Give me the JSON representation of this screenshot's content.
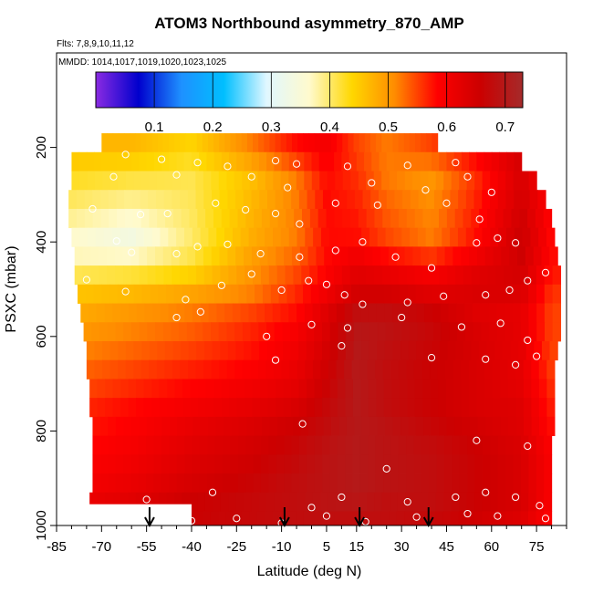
{
  "chart_data": {
    "type": "heatmap",
    "title": "ATOM3 Northbound asymmetry_870_AMP",
    "flights_note": "Flts: 7,8,9,10,11,12",
    "dates_note": "MMDD: 1014,1017,1019,1020,1023,1025",
    "xlabel": "Latitude (deg N)",
    "ylabel": "PSXC (mbar)",
    "xlim": [
      -85,
      85
    ],
    "ylim": [
      1000,
      0
    ],
    "x_ticks": [
      -85,
      -70,
      -55,
      -40,
      -25,
      -10,
      5,
      15,
      30,
      45,
      60,
      75
    ],
    "y_ticks": [
      200,
      400,
      600,
      800,
      1000
    ],
    "colorbar": {
      "range": [
        0,
        0.73
      ],
      "ticks": [
        0.1,
        0.2,
        0.3,
        0.4,
        0.5,
        0.6,
        0.7
      ],
      "colors": [
        "#8a2be2",
        "#0000cd",
        "#1e90ff",
        "#00bfff",
        "#e0f7ff",
        "#fffacd",
        "#ffd700",
        "#ff8c00",
        "#ff0000",
        "#cc0000",
        "#a52a2a"
      ]
    },
    "pressure_levels": [
      170,
      210,
      250,
      290,
      330,
      370,
      410,
      450,
      490,
      530,
      570,
      610,
      650,
      690,
      730,
      770,
      810,
      850,
      890,
      930,
      970,
      1000
    ],
    "row_extents": [
      [
        -70,
        42
      ],
      [
        -80,
        70
      ],
      [
        -80,
        75
      ],
      [
        -81,
        78
      ],
      [
        -81,
        80
      ],
      [
        -80,
        81
      ],
      [
        -79,
        82
      ],
      [
        -79,
        83
      ],
      [
        -78,
        83
      ],
      [
        -77,
        83
      ],
      [
        -76,
        83
      ],
      [
        -75,
        82
      ],
      [
        -75,
        81
      ],
      [
        -74,
        81
      ],
      [
        -74,
        81
      ],
      [
        -73,
        81
      ],
      [
        -73,
        80
      ],
      [
        -73,
        80
      ],
      [
        -73,
        80
      ],
      [
        -74,
        80
      ],
      [
        -75,
        80
      ]
    ],
    "field_profile": [
      {
        "lat": -80,
        "values": [
          0.47,
          0.43,
          0.36,
          0.38,
          0.45,
          0.48,
          0.5,
          0.52,
          0.54,
          0.56,
          0.57,
          0.58,
          0.59,
          0.6,
          0.61,
          0.62
        ]
      },
      {
        "lat": -60,
        "values": [
          0.47,
          0.42,
          0.33,
          0.39,
          0.46,
          0.5,
          0.52,
          0.54,
          0.56,
          0.58,
          0.59,
          0.6,
          0.61,
          0.62,
          0.63,
          0.64
        ]
      },
      {
        "lat": -40,
        "values": [
          0.44,
          0.41,
          0.4,
          0.42,
          0.48,
          0.52,
          0.54,
          0.56,
          0.58,
          0.6,
          0.62,
          0.63,
          0.64,
          0.65,
          0.66,
          0.66
        ]
      },
      {
        "lat": -20,
        "values": [
          0.52,
          0.46,
          0.48,
          0.5,
          0.51,
          0.55,
          0.57,
          0.58,
          0.6,
          0.62,
          0.64,
          0.65,
          0.66,
          0.67,
          0.67,
          0.67
        ]
      },
      {
        "lat": -5,
        "values": [
          0.58,
          0.52,
          0.52,
          0.54,
          0.56,
          0.58,
          0.6,
          0.61,
          0.62,
          0.64,
          0.66,
          0.67,
          0.68,
          0.68,
          0.68,
          0.68
        ]
      },
      {
        "lat": 5,
        "values": [
          0.6,
          0.58,
          0.58,
          0.58,
          0.6,
          0.63,
          0.64,
          0.65,
          0.66,
          0.67,
          0.68,
          0.69,
          0.69,
          0.69,
          0.69,
          0.68
        ]
      },
      {
        "lat": 15,
        "values": [
          0.55,
          0.56,
          0.58,
          0.62,
          0.64,
          0.68,
          0.7,
          0.7,
          0.7,
          0.7,
          0.7,
          0.7,
          0.7,
          0.7,
          0.69,
          0.68
        ]
      },
      {
        "lat": 25,
        "values": [
          0.52,
          0.52,
          0.55,
          0.6,
          0.64,
          0.68,
          0.69,
          0.68,
          0.68,
          0.68,
          0.69,
          0.69,
          0.69,
          0.69,
          0.68,
          0.68
        ]
      },
      {
        "lat": 40,
        "values": [
          0.55,
          0.5,
          0.52,
          0.58,
          0.62,
          0.66,
          0.67,
          0.66,
          0.66,
          0.66,
          0.67,
          0.68,
          0.68,
          0.68,
          0.68,
          0.67
        ]
      },
      {
        "lat": 55,
        "values": [
          0.6,
          0.56,
          0.58,
          0.62,
          0.64,
          0.63,
          0.64,
          0.64,
          0.64,
          0.64,
          0.65,
          0.66,
          0.66,
          0.66,
          0.66,
          0.65
        ]
      },
      {
        "lat": 70,
        "values": [
          0.65,
          0.64,
          0.66,
          0.65,
          0.64,
          0.62,
          0.62,
          0.62,
          0.62,
          0.63,
          0.63,
          0.64,
          0.64,
          0.64,
          0.64,
          0.63
        ]
      },
      {
        "lat": 80,
        "values": [
          0.6,
          0.58,
          0.58,
          0.58,
          0.56,
          0.55,
          0.55,
          0.55,
          0.56,
          0.57,
          0.58,
          0.59,
          0.59,
          0.59,
          0.59,
          0.58
        ]
      }
    ],
    "profile_pressures": [
      200,
      260,
      400,
      450,
      500,
      550,
      600,
      650,
      700,
      750,
      800,
      850,
      900,
      930,
      960,
      990
    ],
    "arrow_latitudes": [
      -54,
      -9,
      16,
      39
    ],
    "sample_points": [
      [
        -62,
        215
      ],
      [
        -50,
        225
      ],
      [
        -38,
        232
      ],
      [
        -28,
        240
      ],
      [
        -12,
        228
      ],
      [
        -5,
        235
      ],
      [
        12,
        240
      ],
      [
        32,
        238
      ],
      [
        48,
        232
      ],
      [
        -66,
        262
      ],
      [
        -45,
        258
      ],
      [
        -20,
        262
      ],
      [
        -8,
        285
      ],
      [
        20,
        275
      ],
      [
        38,
        290
      ],
      [
        52,
        262
      ],
      [
        60,
        295
      ],
      [
        -73,
        330
      ],
      [
        -57,
        342
      ],
      [
        -48,
        340
      ],
      [
        -32,
        318
      ],
      [
        -22,
        332
      ],
      [
        -12,
        340
      ],
      [
        -4,
        362
      ],
      [
        8,
        318
      ],
      [
        22,
        322
      ],
      [
        45,
        318
      ],
      [
        56,
        352
      ],
      [
        -65,
        398
      ],
      [
        -60,
        422
      ],
      [
        -45,
        425
      ],
      [
        -38,
        410
      ],
      [
        -28,
        405
      ],
      [
        -17,
        425
      ],
      [
        -4,
        432
      ],
      [
        8,
        418
      ],
      [
        17,
        400
      ],
      [
        28,
        432
      ],
      [
        40,
        455
      ],
      [
        55,
        402
      ],
      [
        62,
        392
      ],
      [
        68,
        402
      ],
      [
        -75,
        480
      ],
      [
        -62,
        505
      ],
      [
        -42,
        522
      ],
      [
        -30,
        492
      ],
      [
        -20,
        468
      ],
      [
        -10,
        502
      ],
      [
        -1,
        482
      ],
      [
        5,
        490
      ],
      [
        11,
        512
      ],
      [
        17,
        532
      ],
      [
        32,
        528
      ],
      [
        44,
        515
      ],
      [
        58,
        512
      ],
      [
        66,
        502
      ],
      [
        72,
        482
      ],
      [
        78,
        465
      ],
      [
        -45,
        560
      ],
      [
        -37,
        548
      ],
      [
        -15,
        600
      ],
      [
        0,
        575
      ],
      [
        12,
        582
      ],
      [
        30,
        560
      ],
      [
        50,
        580
      ],
      [
        63,
        572
      ],
      [
        72,
        608
      ],
      [
        -12,
        650
      ],
      [
        10,
        620
      ],
      [
        40,
        645
      ],
      [
        58,
        648
      ],
      [
        68,
        660
      ],
      [
        75,
        642
      ],
      [
        -3,
        785
      ],
      [
        55,
        820
      ],
      [
        72,
        832
      ],
      [
        25,
        880
      ],
      [
        -55,
        945
      ],
      [
        -33,
        930
      ],
      [
        0,
        962
      ],
      [
        10,
        940
      ],
      [
        32,
        950
      ],
      [
        48,
        940
      ],
      [
        58,
        930
      ],
      [
        68,
        940
      ],
      [
        76,
        958
      ],
      [
        -70,
        975
      ],
      [
        -40,
        990
      ],
      [
        -25,
        985
      ],
      [
        -10,
        995
      ],
      [
        5,
        980
      ],
      [
        18,
        992
      ],
      [
        35,
        982
      ],
      [
        52,
        975
      ],
      [
        62,
        980
      ],
      [
        78,
        985
      ]
    ]
  }
}
